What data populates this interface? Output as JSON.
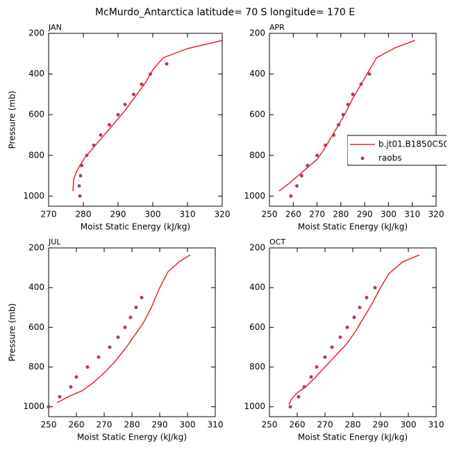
{
  "title": "McMurdo_Antarctica  latitude= 70 S longitude= 170 E",
  "chart_data": [
    {
      "type": "line",
      "title": "JAN",
      "x_label": "Moist Static Energy (kJ/kg)",
      "y_label": "Pressure (mb)",
      "xlim": [
        270,
        320
      ],
      "xticks": [
        270,
        280,
        290,
        300,
        310,
        320
      ],
      "ylim": [
        1050,
        200
      ],
      "yticks": [
        200,
        400,
        600,
        800,
        1000
      ],
      "series": [
        {
          "type": "line",
          "color": "#e8232a",
          "x": [
            277,
            277.2,
            278,
            279,
            280.5,
            283,
            286,
            289,
            292,
            295,
            298,
            300,
            303,
            310,
            320
          ],
          "values": [
            975,
            920,
            880,
            850,
            810,
            760,
            700,
            640,
            580,
            510,
            440,
            380,
            320,
            275,
            235
          ]
        },
        {
          "type": "scatter",
          "color": "#b5375f",
          "x": [
            279,
            278.8,
            279.2,
            279.5,
            281,
            283,
            285,
            287.5,
            290,
            292,
            294.5,
            296.8,
            299.3,
            304
          ],
          "values": [
            1000,
            950,
            900,
            850,
            800,
            750,
            700,
            650,
            600,
            550,
            500,
            450,
            400,
            350
          ]
        }
      ]
    },
    {
      "type": "line",
      "title": "APR",
      "x_label": "Moist Static Energy (kJ/kg)",
      "xlim": [
        250,
        320
      ],
      "xticks": [
        250,
        260,
        270,
        280,
        290,
        300,
        310,
        320
      ],
      "ylim": [
        1050,
        200
      ],
      "yticks": [
        200,
        400,
        600,
        800,
        1000
      ],
      "series": [
        {
          "type": "line",
          "name": "b.jt01.B1850C50",
          "color": "#e8232a",
          "x": [
            254,
            258,
            262,
            266,
            270,
            273,
            276,
            279,
            282,
            285,
            288,
            291,
            295,
            303,
            311
          ],
          "values": [
            975,
            940,
            900,
            860,
            820,
            770,
            710,
            650,
            590,
            520,
            460,
            400,
            320,
            270,
            235
          ]
        },
        {
          "type": "scatter",
          "name": "raobs",
          "color": "#b5375f",
          "x": [
            259,
            261.5,
            263.5,
            266,
            270,
            273.5,
            277,
            279,
            281,
            283,
            285,
            288.5,
            292
          ],
          "values": [
            1000,
            950,
            900,
            850,
            800,
            750,
            700,
            650,
            600,
            550,
            500,
            450,
            400
          ]
        }
      ]
    },
    {
      "type": "line",
      "title": "JUL",
      "x_label": "Moist Static Energy (kJ/kg)",
      "y_label": "Pressure (mb)",
      "xlim": [
        250,
        310
      ],
      "xticks": [
        250,
        260,
        270,
        280,
        290,
        300,
        310
      ],
      "ylim": [
        1050,
        200
      ],
      "yticks": [
        200,
        400,
        600,
        800,
        1000
      ],
      "series": [
        {
          "type": "line",
          "color": "#e8232a",
          "x": [
            253,
            257,
            262,
            266,
            270,
            274,
            278,
            281,
            284,
            287,
            290,
            293,
            297,
            301
          ],
          "values": [
            980,
            950,
            920,
            880,
            830,
            770,
            700,
            640,
            580,
            500,
            400,
            320,
            270,
            235
          ]
        },
        {
          "type": "scatter",
          "color": "#b5375f",
          "x": [
            250,
            254,
            258,
            260,
            264,
            268,
            272,
            275,
            277.5,
            279.5,
            281.5,
            283.5
          ],
          "values": [
            1000,
            950,
            900,
            850,
            800,
            750,
            700,
            650,
            600,
            550,
            500,
            450
          ]
        }
      ]
    },
    {
      "type": "line",
      "title": "OCT",
      "x_label": "Moist Static Energy (kJ/kg)",
      "xlim": [
        250,
        310
      ],
      "xticks": [
        250,
        260,
        270,
        280,
        290,
        300,
        310
      ],
      "ylim": [
        1050,
        200
      ],
      "yticks": [
        200,
        400,
        600,
        800,
        1000
      ],
      "series": [
        {
          "type": "line",
          "color": "#e8232a",
          "x": [
            257,
            258,
            260,
            263,
            266,
            270,
            274,
            278,
            281,
            284,
            287,
            290,
            293,
            298,
            304
          ],
          "values": [
            990,
            960,
            930,
            900,
            860,
            800,
            740,
            680,
            620,
            550,
            480,
            400,
            330,
            270,
            235
          ]
        },
        {
          "type": "scatter",
          "color": "#b5375f",
          "x": [
            257.5,
            260.5,
            262.5,
            265,
            267,
            270,
            272.5,
            275.5,
            278,
            280.5,
            282.5,
            285,
            288
          ],
          "values": [
            1000,
            950,
            900,
            850,
            800,
            750,
            700,
            650,
            600,
            550,
            500,
            450,
            400
          ]
        }
      ]
    }
  ]
}
